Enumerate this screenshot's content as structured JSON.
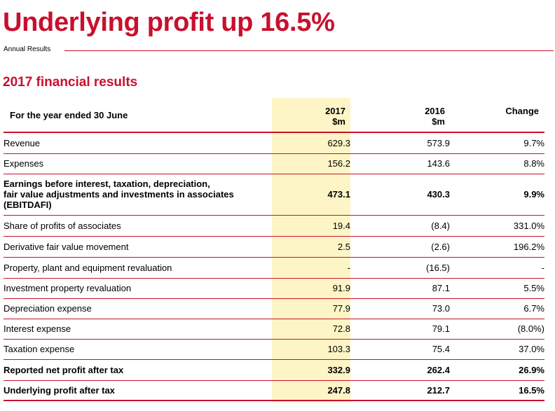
{
  "title": "Underlying profit up 16.5%",
  "subtitle": "Annual Results",
  "section_title": "2017 financial results",
  "colors": {
    "accent": "#c8102e",
    "highlight": "#fdf5c5"
  },
  "table": {
    "header": {
      "label": "For the year ended 30 June",
      "col2017_year": "2017",
      "col2017_unit": "$m",
      "col2016_year": "2016",
      "col2016_unit": "$m",
      "change": "Change"
    },
    "rows": [
      {
        "label": "Revenue",
        "v2017": "629.3",
        "v2016": "573.9",
        "change": "9.7%"
      },
      {
        "label": "Expenses",
        "v2017": "156.2",
        "v2016": "143.6",
        "change": "8.8%"
      },
      {
        "label_line1": "Earnings before interest, taxation, depreciation,",
        "label_line2": "fair value adjustments and investments in associates",
        "label_line3": "(EBITDAFI)",
        "v2017": "473.1",
        "v2016": "430.3",
        "change": "9.9%"
      },
      {
        "label": "Share of profits of associates",
        "v2017": "19.4",
        "v2016": "(8.4)",
        "change": "331.0%"
      },
      {
        "label": "Derivative fair value movement",
        "v2017": "2.5",
        "v2016": "(2.6)",
        "change": "196.2%"
      },
      {
        "label": "Property, plant and equipment revaluation",
        "v2017": "-",
        "v2016": "(16.5)",
        "change": "-"
      },
      {
        "label": "Investment property revaluation",
        "v2017": "91.9",
        "v2016": "87.1",
        "change": "5.5%"
      },
      {
        "label": "Depreciation expense",
        "v2017": "77.9",
        "v2016": "73.0",
        "change": "6.7%"
      },
      {
        "label": "Interest expense",
        "v2017": "72.8",
        "v2016": "79.1",
        "change": "(8.0%)"
      },
      {
        "label": "Taxation expense",
        "v2017": "103.3",
        "v2016": "75.4",
        "change": "37.0%"
      },
      {
        "label": "Reported net profit after tax",
        "v2017": "332.9",
        "v2016": "262.4",
        "change": "26.9%"
      },
      {
        "label": "Underlying profit after tax",
        "v2017": "247.8",
        "v2016": "212.7",
        "change": "16.5%"
      }
    ]
  }
}
